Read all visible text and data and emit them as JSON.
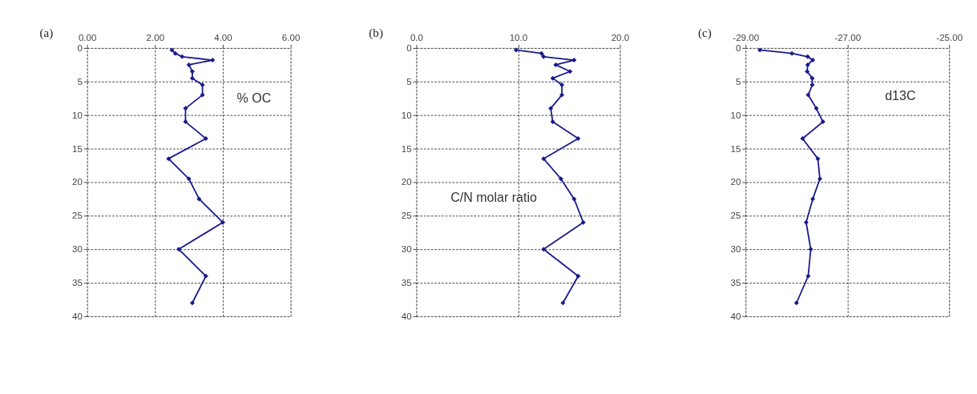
{
  "chart_data": [
    {
      "type": "line",
      "title": "(a)",
      "xlim": [
        0,
        6
      ],
      "xticks": [
        {
          "value": 0,
          "label": "0.00"
        },
        {
          "value": 2,
          "label": "2.00"
        },
        {
          "value": 4,
          "label": "4.00"
        },
        {
          "value": 6,
          "label": "6.00"
        }
      ],
      "ylim": [
        40,
        0
      ],
      "yticks": [
        0,
        5,
        10,
        15,
        20,
        25,
        30,
        35,
        40
      ],
      "grid": true,
      "marker": "diamond",
      "line_style": "solid",
      "series": [
        {
          "name": "% OC",
          "color": "#1a1a8c",
          "x": [
            2.5,
            2.6,
            2.8,
            3.7,
            3.0,
            3.1,
            3.1,
            3.4,
            3.4,
            2.9,
            2.9,
            3.5,
            2.4,
            3.0,
            3.3,
            4.0,
            2.7,
            3.5,
            3.1
          ],
          "values": [
            0.3,
            0.8,
            1.3,
            1.8,
            2.5,
            3.5,
            4.5,
            5.5,
            7,
            9,
            11,
            13.5,
            16.5,
            19.5,
            22.5,
            26,
            30,
            34,
            38
          ]
        }
      ]
    },
    {
      "type": "line",
      "title": "(b)",
      "xlim": [
        0,
        20
      ],
      "xticks": [
        {
          "value": 0,
          "label": "0.0"
        },
        {
          "value": 10,
          "label": "10.0"
        },
        {
          "value": 20,
          "label": "20.0"
        }
      ],
      "ylim": [
        40,
        0
      ],
      "yticks": [
        0,
        5,
        10,
        15,
        20,
        25,
        30,
        35,
        40
      ],
      "grid": true,
      "marker": "diamond",
      "line_style": "solid",
      "series": [
        {
          "name": "C/N molar ratio",
          "color": "#1a1a8c",
          "x": [
            9.8,
            12.3,
            12.5,
            15.5,
            13.7,
            15.1,
            13.4,
            14.3,
            14.3,
            13.2,
            13.4,
            15.9,
            12.5,
            14.2,
            15.5,
            16.4,
            12.5,
            15.9,
            14.4
          ],
          "values": [
            0.3,
            0.8,
            1.3,
            1.8,
            2.5,
            3.5,
            4.5,
            5.5,
            7,
            9,
            11,
            13.5,
            16.5,
            19.5,
            22.5,
            26,
            30,
            34,
            38
          ]
        }
      ]
    },
    {
      "type": "line",
      "title": "(c)",
      "xlim": [
        -29,
        -25
      ],
      "xticks": [
        {
          "value": -29,
          "label": "-29.00"
        },
        {
          "value": -27,
          "label": "-27.00"
        },
        {
          "value": -25,
          "label": "-25.00"
        }
      ],
      "ylim": [
        40,
        0
      ],
      "yticks": [
        0,
        5,
        10,
        15,
        20,
        25,
        30,
        35,
        40
      ],
      "grid": true,
      "marker": "diamond",
      "line_style": "solid",
      "series": [
        {
          "name": "d13C",
          "color": "#1a1a8c",
          "x": [
            -28.72,
            -28.09,
            -27.78,
            -27.68,
            -27.78,
            -27.79,
            -27.69,
            -27.69,
            -27.77,
            -27.61,
            -27.48,
            -27.88,
            -27.58,
            -27.54,
            -27.68,
            -27.81,
            -27.72,
            -27.77,
            -28.0
          ],
          "values": [
            0.3,
            0.8,
            1.3,
            1.8,
            2.5,
            3.5,
            4.5,
            5.5,
            7,
            9,
            11,
            13.5,
            16.5,
            19.5,
            22.5,
            26,
            30,
            34,
            38
          ]
        }
      ]
    }
  ]
}
